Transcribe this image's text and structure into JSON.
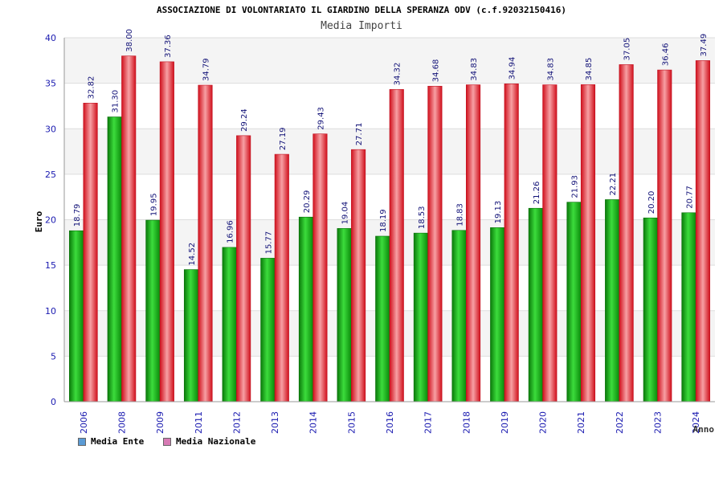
{
  "title": "ASSOCIAZIONE DI VOLONTARIATO IL GIARDINO DELLA SPERANZA ODV (c.f.92032150416)",
  "subtitle": "Media Importi",
  "legend": {
    "ente": "Media Ente",
    "nazionale": "Media Nazionale",
    "ente_color": "#5b9bd5",
    "nazionale_color": "#d77ab4"
  },
  "chart_data": {
    "type": "bar",
    "xlabel": "Anno",
    "ylabel": "Euro",
    "ylim": [
      0,
      40
    ],
    "yticks": [
      0,
      5,
      10,
      15,
      20,
      25,
      30,
      35,
      40
    ],
    "categories": [
      "2006",
      "2008",
      "2009",
      "2011",
      "2012",
      "2013",
      "2014",
      "2015",
      "2016",
      "2017",
      "2018",
      "2019",
      "2020",
      "2021",
      "2022",
      "2023",
      "2024"
    ],
    "series": [
      {
        "name": "Media Ente",
        "color": "#14b414",
        "values": [
          18.79,
          31.3,
          19.95,
          14.52,
          16.96,
          15.77,
          20.29,
          19.04,
          18.19,
          18.53,
          18.83,
          19.13,
          21.26,
          21.93,
          22.21,
          20.2,
          20.77
        ],
        "labels": [
          "18.79",
          "31.30",
          "19.95",
          "14.52",
          "16.96",
          "15.77",
          "20.29",
          "19.04",
          "18.19",
          "18.53",
          "18.83",
          "19.13",
          "21.26",
          "21.93",
          "22.21",
          "20.20",
          "20.77"
        ]
      },
      {
        "name": "Media Nazionale",
        "color": "#e8323c",
        "values": [
          32.82,
          38.0,
          37.36,
          34.79,
          29.24,
          27.19,
          29.43,
          27.71,
          34.32,
          34.68,
          34.83,
          34.94,
          34.83,
          34.85,
          37.05,
          36.46,
          37.49
        ],
        "labels": [
          "32.82",
          "38.00",
          "37.36",
          "34.79",
          "29.24",
          "27.19",
          "29.43",
          "27.71",
          "34.32",
          "34.68",
          "34.83",
          "34.94",
          "34.83",
          "34.85",
          "37.05",
          "36.46",
          "37.49"
        ]
      }
    ],
    "grid": true,
    "legend_position": "bottom-left"
  }
}
